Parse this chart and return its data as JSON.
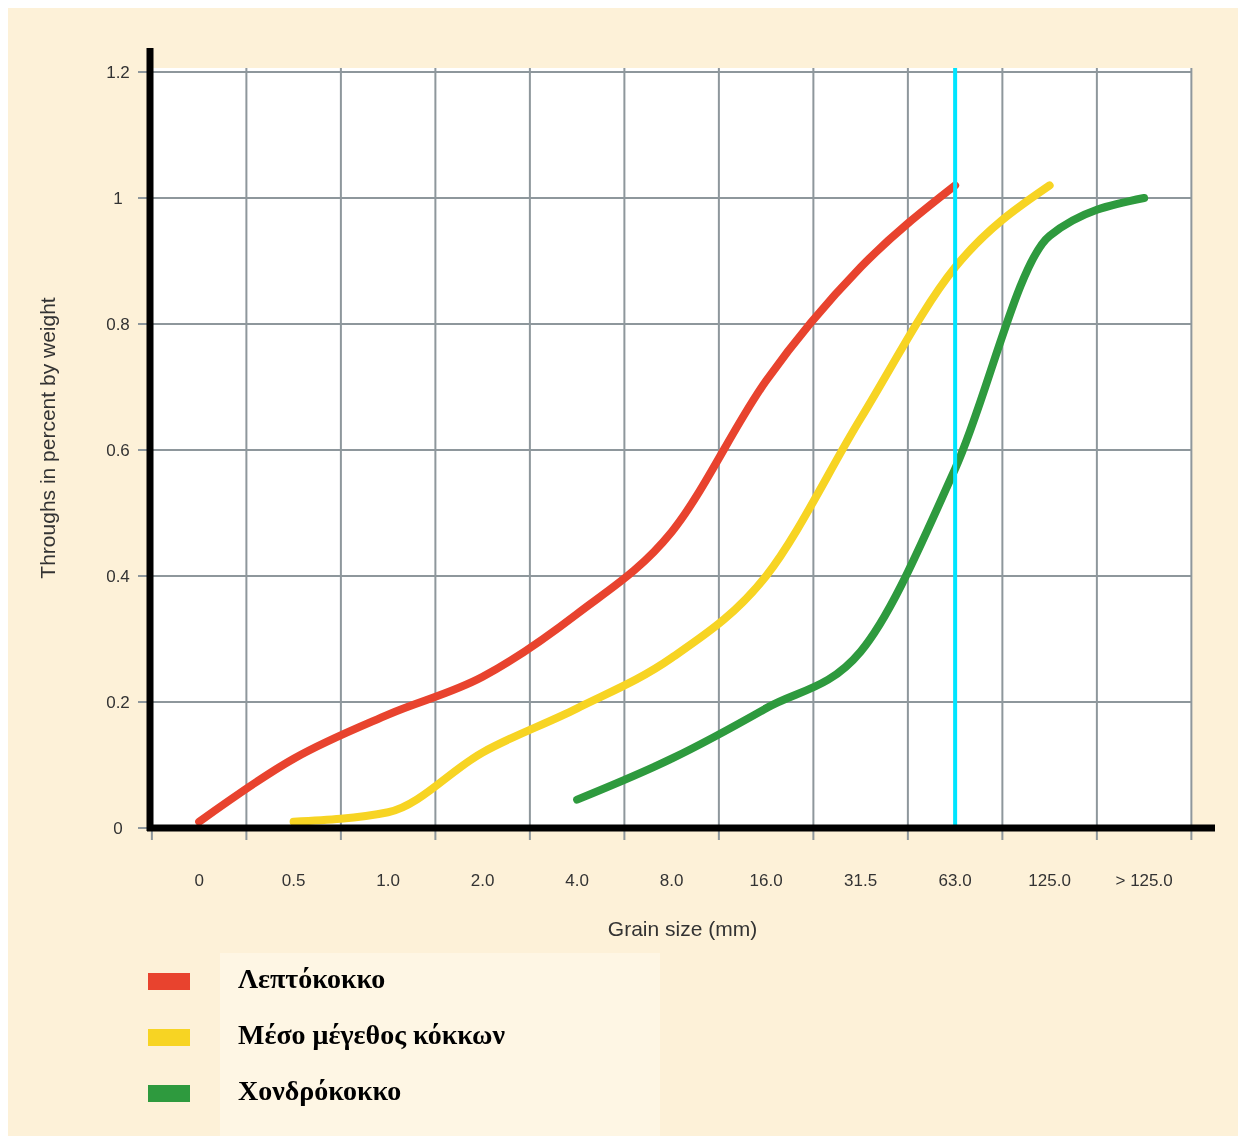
{
  "chart_data": {
    "type": "line",
    "xlabel": "Grain size (mm)",
    "ylabel": "Throughs in percent by weight",
    "categories": [
      "0",
      "0.5",
      "1.0",
      "2.0",
      "4.0",
      "8.0",
      "16.0",
      "31.5",
      "63.0",
      "125.0",
      "> 125.0"
    ],
    "ylim": [
      0,
      1.2
    ],
    "yticks": [
      0,
      0.2,
      0.4,
      0.6,
      0.8,
      1,
      1.2
    ],
    "grid": true,
    "legend": "bottom",
    "marker": "none",
    "line_style": "solid",
    "series": [
      {
        "name": "Λεπτόκοκκο",
        "color": "#e8432e",
        "values": [
          0.01,
          0.11,
          0.18,
          0.24,
          0.34,
          0.47,
          0.71,
          0.89,
          1.02,
          null,
          null
        ]
      },
      {
        "name": "Μέσο μέγεθος κόκκων",
        "color": "#f7d423",
        "values": [
          null,
          0.01,
          0.025,
          0.12,
          0.19,
          0.27,
          0.4,
          0.65,
          0.89,
          1.02,
          null
        ]
      },
      {
        "name": "Χονδρόκοκκο",
        "color": "#2e9a3e",
        "values": [
          null,
          null,
          null,
          null,
          0.045,
          0.11,
          0.19,
          0.28,
          0.57,
          0.94,
          1.0
        ]
      }
    ],
    "ref_lines": [
      {
        "axis": "x",
        "value": "63.0",
        "color": "#00e5ff"
      }
    ]
  }
}
